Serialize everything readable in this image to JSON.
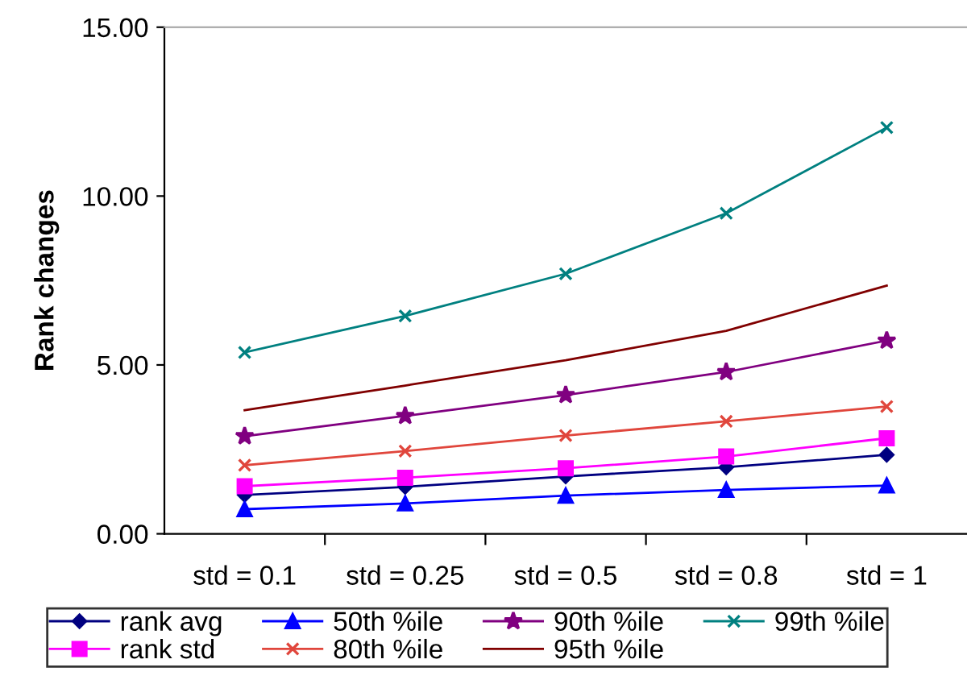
{
  "chart_data": {
    "type": "line",
    "ylabel": "Rank changes",
    "categories": [
      "std = 0.1",
      "std = 0.25",
      "std = 0.5",
      "std = 0.8",
      "std = 1"
    ],
    "ylim": [
      0,
      15
    ],
    "yticks": [
      {
        "value": 0,
        "label": "0.00"
      },
      {
        "value": 5,
        "label": "5.00"
      },
      {
        "value": 10,
        "label": "10.00"
      },
      {
        "value": 15,
        "label": "15.00"
      }
    ],
    "grid": false,
    "legend": "bottom",
    "series": [
      {
        "name": "rank avg",
        "color": "#000080",
        "marker": "diamond",
        "values": [
          1.15,
          1.39,
          1.7,
          1.97,
          2.34
        ]
      },
      {
        "name": "rank std",
        "color": "#ff00ff",
        "marker": "square",
        "values": [
          1.41,
          1.66,
          1.94,
          2.29,
          2.83
        ]
      },
      {
        "name": "50th %ile",
        "color": "#0000ff",
        "marker": "triangle",
        "values": [
          0.73,
          0.9,
          1.13,
          1.3,
          1.43
        ]
      },
      {
        "name": "80th %ile",
        "color": "#e0463c",
        "marker": "cross",
        "values": [
          2.03,
          2.45,
          2.91,
          3.33,
          3.77
        ]
      },
      {
        "name": "90th %ile",
        "color": "#800080",
        "marker": "star",
        "values": [
          2.89,
          3.49,
          4.11,
          4.79,
          5.72
        ]
      },
      {
        "name": "95th %ile",
        "color": "#800000",
        "line_style": "solid",
        "values": [
          3.66,
          4.39,
          5.14,
          6.01,
          7.35
        ]
      },
      {
        "name": "99th %ile",
        "color": "#008080",
        "marker": "cross",
        "values": [
          5.37,
          6.45,
          7.7,
          9.49,
          12.03
        ]
      }
    ]
  }
}
